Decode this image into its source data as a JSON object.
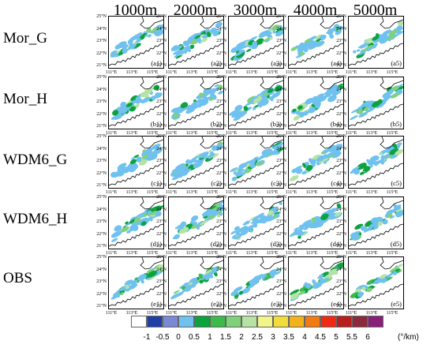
{
  "columns": [
    "1000m",
    "2000m",
    "3000m",
    "4000m",
    "5000m"
  ],
  "rows": [
    {
      "name": "Mor_G",
      "panels": [
        "(a1)",
        "(a2)",
        "(a3)",
        "(a4)",
        "(a5)"
      ]
    },
    {
      "name": "Mor_H",
      "panels": [
        "(b1)",
        "(b2)",
        "(b3)",
        "(b4)",
        "(b5)"
      ]
    },
    {
      "name": "WDM6_G",
      "panels": [
        "(c1)",
        "(c2)",
        "(c3)",
        "(c4)",
        "(c5)"
      ]
    },
    {
      "name": "WDM6_H",
      "panels": [
        "(d1)",
        "(d2)",
        "(d3)",
        "(d4)",
        "(d5)"
      ]
    },
    {
      "name": "OBS",
      "panels": [
        "(e1)",
        "(e2)",
        "(e3)",
        "(e4)",
        "(e5)"
      ]
    }
  ],
  "lat_labels": [
    "25°N",
    "24°N",
    "23°N",
    "22°N",
    "21°N"
  ],
  "lon_labels": [
    "111°E",
    "113°E",
    "115°E"
  ],
  "colorbar": {
    "ticks": [
      "-1",
      "-0.5",
      "0",
      "0.5",
      "1",
      "1.5",
      "2",
      "2.5",
      "3",
      "3.5",
      "4",
      "4.5",
      "5",
      "5.5",
      "6"
    ],
    "unit": "(°/km)",
    "colors": [
      "#ffffff",
      "#1f3fa5",
      "#7a88d6",
      "#6fc1ef",
      "#0ca33e",
      "#3cbb4a",
      "#7fd17a",
      "#b6e3a3",
      "#f2f58a",
      "#f2dc3b",
      "#f4b21a",
      "#f27a12",
      "#ef2a12",
      "#b81e1e",
      "#8a2a3a",
      "#8a1f7a"
    ]
  }
}
